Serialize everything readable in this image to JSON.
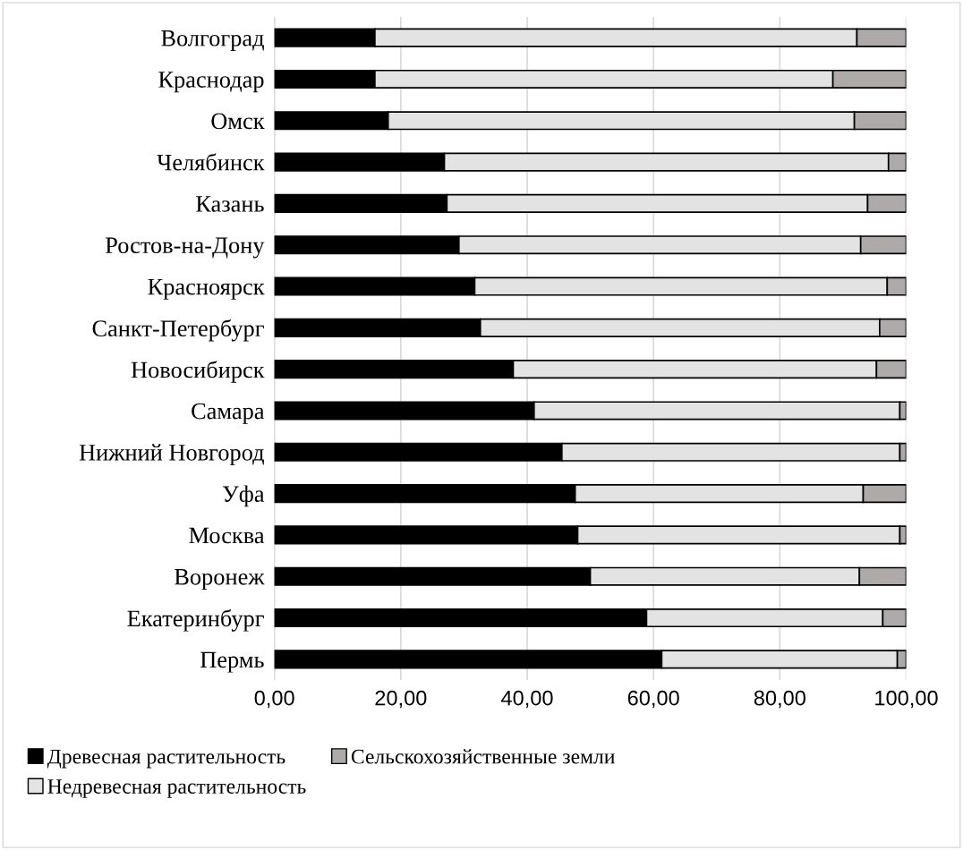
{
  "chart_data": {
    "type": "bar",
    "orientation": "horizontal",
    "stacked": true,
    "categories": [
      "Волгоград",
      "Краснодар",
      "Омск",
      "Челябинск",
      "Казань",
      "Ростов-на-Дону",
      "Красноярск",
      "Санкт-Петербург",
      "Новосибирск",
      "Самара",
      "Нижний Новгород",
      "Уфа",
      "Москва",
      "Воронеж",
      "Екатеринбург",
      "Пермь"
    ],
    "series": [
      {
        "name": "Древесная растительность",
        "color": "#000000",
        "values": [
          15.9,
          15.9,
          18.0,
          26.9,
          27.3,
          29.2,
          31.7,
          32.6,
          37.8,
          41.1,
          45.5,
          47.6,
          48.0,
          50.0,
          58.9,
          61.3
        ]
      },
      {
        "name": "Недревесная растительность",
        "color": "#e3e3e3",
        "values": [
          76.3,
          72.5,
          73.8,
          70.3,
          66.6,
          63.6,
          65.3,
          63.2,
          57.5,
          57.9,
          53.5,
          45.6,
          51.0,
          42.6,
          37.4,
          37.3
        ]
      },
      {
        "name": "Сельскохозяйственные земли",
        "color": "#aeaaaa",
        "values": [
          7.8,
          11.6,
          8.2,
          2.8,
          6.1,
          7.2,
          3.0,
          4.2,
          4.7,
          1.0,
          1.0,
          6.8,
          1.0,
          7.4,
          3.7,
          1.4
        ]
      }
    ],
    "xlim": [
      0,
      100
    ],
    "xticks": [
      {
        "value": 0,
        "label": "0,00"
      },
      {
        "value": 20,
        "label": "20,00"
      },
      {
        "value": 40,
        "label": "40,00"
      },
      {
        "value": 60,
        "label": "60,00"
      },
      {
        "value": 80,
        "label": "80,00"
      },
      {
        "value": 100,
        "label": "100,00"
      }
    ],
    "grid": "x",
    "legend": "bottom"
  }
}
